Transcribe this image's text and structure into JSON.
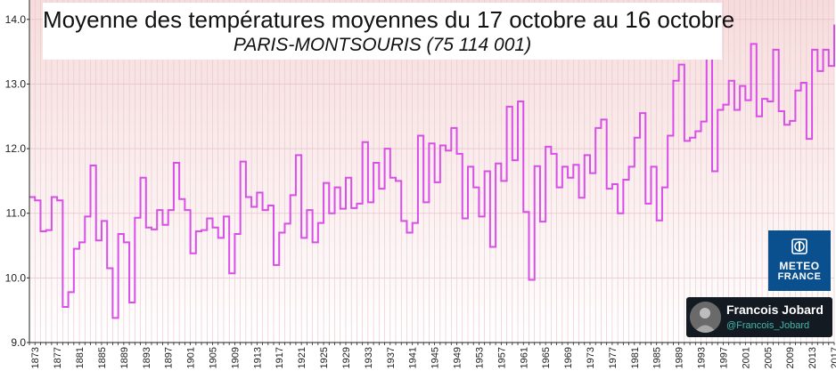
{
  "chart_data": {
    "type": "line",
    "step": true,
    "title": "Moyenne des températures moyennes du 17 octobre au 16 octobre",
    "subtitle": "PARIS-MONTSOURIS (75 114 001)",
    "xlabel": "",
    "ylabel": "",
    "xlim": [
      1873,
      2017
    ],
    "ylim": [
      9.0,
      14.3
    ],
    "y_ticks": [
      9.0,
      10.0,
      11.0,
      12.0,
      13.0,
      14.0
    ],
    "x_tick_start": 1873,
    "x_tick_step": 4,
    "grid": true,
    "colors": {
      "line": "#d94ee6",
      "grid": "#e9c4cc",
      "axis": "#222222",
      "bg_top": "#f6dcdc",
      "bg_bottom": "#ffffff"
    },
    "x": [
      1872,
      1873,
      1874,
      1875,
      1876,
      1877,
      1878,
      1879,
      1880,
      1881,
      1882,
      1883,
      1884,
      1885,
      1886,
      1887,
      1888,
      1889,
      1890,
      1891,
      1892,
      1893,
      1894,
      1895,
      1896,
      1897,
      1898,
      1899,
      1900,
      1901,
      1902,
      1903,
      1904,
      1905,
      1906,
      1907,
      1908,
      1909,
      1910,
      1911,
      1912,
      1913,
      1914,
      1915,
      1916,
      1917,
      1918,
      1919,
      1920,
      1921,
      1922,
      1923,
      1924,
      1925,
      1926,
      1927,
      1928,
      1929,
      1930,
      1931,
      1932,
      1933,
      1934,
      1935,
      1936,
      1937,
      1938,
      1939,
      1940,
      1941,
      1942,
      1943,
      1944,
      1945,
      1946,
      1947,
      1948,
      1949,
      1950,
      1951,
      1952,
      1953,
      1954,
      1955,
      1956,
      1957,
      1958,
      1959,
      1960,
      1961,
      1962,
      1963,
      1964,
      1965,
      1966,
      1967,
      1968,
      1969,
      1970,
      1971,
      1972,
      1973,
      1974,
      1975,
      1976,
      1977,
      1978,
      1979,
      1980,
      1981,
      1982,
      1983,
      1984,
      1985,
      1986,
      1987,
      1988,
      1989,
      1990,
      1991,
      1992,
      1993,
      1994,
      1995,
      1996,
      1997,
      1998,
      1999,
      2000,
      2001,
      2002,
      2003,
      2004,
      2005,
      2006,
      2007,
      2008,
      2009,
      2010,
      2011,
      2012,
      2013,
      2014,
      2015,
      2016,
      2017
    ],
    "series": [
      {
        "values": [
          11.25,
          11.2,
          10.72,
          10.74,
          11.25,
          11.2,
          9.55,
          9.78,
          10.45,
          10.55,
          10.95,
          11.74,
          10.58,
          10.88,
          10.15,
          9.38,
          10.68,
          10.55,
          9.62,
          10.93,
          11.55,
          10.78,
          10.75,
          11.05,
          10.82,
          11.05,
          11.78,
          11.22,
          11.05,
          10.38,
          10.72,
          10.74,
          10.92,
          10.78,
          10.62,
          10.95,
          10.07,
          10.68,
          11.8,
          11.25,
          11.1,
          11.32,
          11.05,
          11.12,
          10.2,
          10.7,
          10.84,
          11.28,
          11.9,
          10.62,
          11.05,
          10.55,
          10.85,
          11.47,
          11.0,
          11.4,
          11.07,
          11.55,
          11.08,
          11.15,
          12.1,
          11.17,
          11.78,
          11.38,
          12.0,
          11.55,
          11.5,
          10.88,
          10.7,
          10.85,
          12.2,
          11.17,
          12.08,
          11.48,
          12.05,
          11.97,
          12.32,
          11.92,
          10.92,
          11.72,
          11.4,
          10.95,
          11.65,
          10.48,
          11.77,
          11.5,
          12.65,
          11.82,
          12.73,
          11.02,
          9.97,
          11.73,
          10.87,
          12.03,
          11.92,
          11.4,
          11.72,
          11.55,
          11.75,
          11.24,
          11.9,
          11.62,
          12.32,
          12.45,
          11.38,
          11.45,
          11.0,
          11.52,
          11.72,
          12.17,
          12.55,
          11.15,
          11.72,
          10.89,
          11.4,
          12.2,
          13.05,
          13.3,
          12.12,
          12.17,
          12.27,
          12.42,
          13.4,
          11.65,
          12.6,
          12.68,
          13.05,
          12.6,
          12.97,
          12.75,
          13.62,
          12.5,
          12.77,
          12.73,
          13.53,
          12.58,
          12.37,
          12.43,
          12.9,
          13.02,
          12.15,
          13.53,
          13.2,
          13.53,
          13.28,
          13.92
        ]
      }
    ]
  },
  "logo": {
    "line1": "METEO",
    "line2": "FRANCE"
  },
  "author": {
    "name": "Francois Jobard",
    "handle": "@Francois_Jobard"
  }
}
